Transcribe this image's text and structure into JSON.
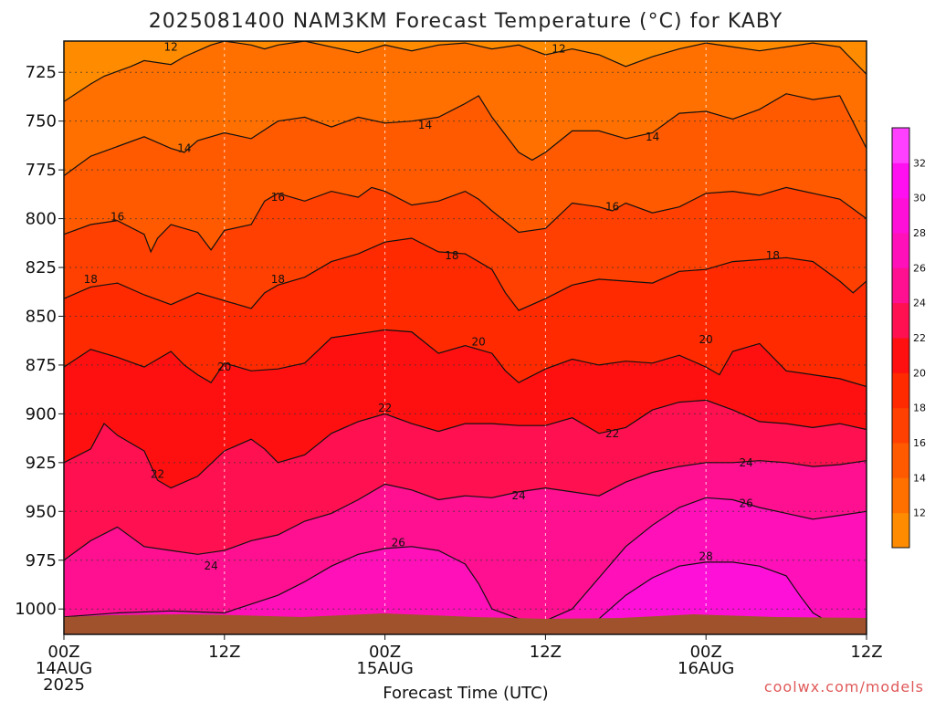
{
  "chart_data": {
    "type": "heatmap",
    "title": "2025081400 NAM3KM Forecast Temperature (°C) for KABY",
    "xlabel": "Forecast Time (UTC)",
    "ylabel": "",
    "credit": "coolwx.com/models",
    "x_ticks": [
      {
        "hour": 0,
        "label": "00Z",
        "sub1": "14AUG",
        "sub2": "2025"
      },
      {
        "hour": 12,
        "label": "12Z",
        "sub1": "",
        "sub2": ""
      },
      {
        "hour": 24,
        "label": "00Z",
        "sub1": "15AUG",
        "sub2": ""
      },
      {
        "hour": 36,
        "label": "12Z",
        "sub1": "",
        "sub2": ""
      },
      {
        "hour": 48,
        "label": "00Z",
        "sub1": "16AUG",
        "sub2": ""
      },
      {
        "hour": 60,
        "label": "12Z",
        "sub1": "",
        "sub2": ""
      }
    ],
    "xlim": [
      0,
      60
    ],
    "y_ticks": [
      725,
      750,
      775,
      800,
      825,
      850,
      875,
      900,
      925,
      950,
      975,
      1000
    ],
    "ylim": [
      1013,
      709
    ],
    "y_scale": "inverted",
    "grid": true,
    "colorbar": {
      "ticks": [
        12,
        14,
        16,
        18,
        20,
        22,
        24,
        26,
        28,
        30,
        32
      ],
      "colors": [
        "#ff8c00",
        "#ff7000",
        "#ff5a00",
        "#ff4000",
        "#ff2a00",
        "#ff1010",
        "#ff1050",
        "#ff1090",
        "#ff10b8",
        "#ff10d8",
        "#ff10f0",
        "#ff40ff"
      ]
    },
    "isotherms": [
      {
        "value": 12,
        "points": [
          [
            0,
            740
          ],
          [
            2,
            731
          ],
          [
            3,
            727
          ],
          [
            5,
            722
          ],
          [
            6,
            719
          ],
          [
            8,
            721
          ],
          [
            9,
            717
          ],
          [
            10,
            714
          ],
          [
            11,
            711
          ],
          [
            12,
            709
          ],
          [
            14,
            711
          ],
          [
            15,
            713
          ],
          [
            16,
            711
          ],
          [
            18,
            709
          ],
          [
            20,
            712
          ],
          [
            22,
            715
          ],
          [
            24,
            711
          ],
          [
            26,
            714
          ],
          [
            28,
            711
          ],
          [
            30,
            710
          ],
          [
            32,
            713
          ],
          [
            34,
            711
          ],
          [
            36,
            716
          ],
          [
            38,
            713
          ],
          [
            40,
            716
          ],
          [
            42,
            722
          ],
          [
            44,
            717
          ],
          [
            46,
            713
          ],
          [
            48,
            710
          ],
          [
            50,
            712
          ],
          [
            52,
            714
          ],
          [
            54,
            712
          ],
          [
            56,
            710
          ],
          [
            58,
            712
          ],
          [
            60,
            726
          ]
        ]
      },
      {
        "value": 14,
        "points": [
          [
            0,
            778
          ],
          [
            2,
            768
          ],
          [
            4,
            763
          ],
          [
            6,
            758
          ],
          [
            8,
            764
          ],
          [
            9,
            766
          ],
          [
            10,
            760
          ],
          [
            12,
            756
          ],
          [
            14,
            759
          ],
          [
            16,
            750
          ],
          [
            18,
            748
          ],
          [
            20,
            753
          ],
          [
            22,
            748
          ],
          [
            24,
            751
          ],
          [
            26,
            750
          ],
          [
            28,
            748
          ],
          [
            30,
            741
          ],
          [
            31,
            737
          ],
          [
            32,
            748
          ],
          [
            34,
            766
          ],
          [
            35,
            770
          ],
          [
            36,
            766
          ],
          [
            38,
            755
          ],
          [
            40,
            755
          ],
          [
            42,
            759
          ],
          [
            44,
            756
          ],
          [
            46,
            746
          ],
          [
            48,
            745
          ],
          [
            50,
            749
          ],
          [
            52,
            744
          ],
          [
            54,
            736
          ],
          [
            56,
            739
          ],
          [
            58,
            737
          ],
          [
            60,
            764
          ]
        ]
      },
      {
        "value": 16,
        "points": [
          [
            0,
            808
          ],
          [
            2,
            803
          ],
          [
            4,
            801
          ],
          [
            6,
            808
          ],
          [
            6.5,
            817
          ],
          [
            7,
            810
          ],
          [
            8,
            803
          ],
          [
            10,
            807
          ],
          [
            11,
            816
          ],
          [
            12,
            806
          ],
          [
            14,
            803
          ],
          [
            15,
            791
          ],
          [
            16,
            787
          ],
          [
            18,
            791
          ],
          [
            20,
            786
          ],
          [
            22,
            789
          ],
          [
            23,
            784
          ],
          [
            24,
            786
          ],
          [
            26,
            793
          ],
          [
            28,
            791
          ],
          [
            30,
            786
          ],
          [
            31,
            790
          ],
          [
            32,
            796
          ],
          [
            34,
            807
          ],
          [
            36,
            805
          ],
          [
            38,
            792
          ],
          [
            40,
            794
          ],
          [
            41,
            796
          ],
          [
            42,
            792
          ],
          [
            44,
            797
          ],
          [
            46,
            794
          ],
          [
            48,
            787
          ],
          [
            50,
            786
          ],
          [
            52,
            788
          ],
          [
            54,
            784
          ],
          [
            56,
            787
          ],
          [
            58,
            790
          ],
          [
            60,
            800
          ]
        ]
      },
      {
        "value": 18,
        "points": [
          [
            0,
            841
          ],
          [
            2,
            835
          ],
          [
            4,
            833
          ],
          [
            6,
            839
          ],
          [
            8,
            844
          ],
          [
            10,
            838
          ],
          [
            12,
            842
          ],
          [
            14,
            846
          ],
          [
            15,
            838
          ],
          [
            16,
            834
          ],
          [
            18,
            830
          ],
          [
            20,
            822
          ],
          [
            22,
            818
          ],
          [
            24,
            812
          ],
          [
            26,
            810
          ],
          [
            28,
            817
          ],
          [
            30,
            818
          ],
          [
            32,
            826
          ],
          [
            33,
            838
          ],
          [
            34,
            847
          ],
          [
            36,
            841
          ],
          [
            38,
            834
          ],
          [
            40,
            831
          ],
          [
            42,
            832
          ],
          [
            44,
            833
          ],
          [
            46,
            827
          ],
          [
            48,
            826
          ],
          [
            50,
            822
          ],
          [
            52,
            821
          ],
          [
            54,
            820
          ],
          [
            56,
            822
          ],
          [
            58,
            832
          ],
          [
            59,
            838
          ],
          [
            60,
            832
          ]
        ]
      },
      {
        "value": 20,
        "points": [
          [
            0,
            876
          ],
          [
            2,
            867
          ],
          [
            4,
            871
          ],
          [
            6,
            876
          ],
          [
            8,
            868
          ],
          [
            9,
            875
          ],
          [
            10,
            880
          ],
          [
            11,
            884
          ],
          [
            12,
            874
          ],
          [
            14,
            878
          ],
          [
            16,
            877
          ],
          [
            18,
            874
          ],
          [
            20,
            861
          ],
          [
            22,
            859
          ],
          [
            24,
            857
          ],
          [
            26,
            858
          ],
          [
            28,
            869
          ],
          [
            30,
            865
          ],
          [
            32,
            869
          ],
          [
            33,
            878
          ],
          [
            34,
            884
          ],
          [
            36,
            877
          ],
          [
            38,
            872
          ],
          [
            40,
            875
          ],
          [
            42,
            873
          ],
          [
            44,
            874
          ],
          [
            46,
            870
          ],
          [
            48,
            876
          ],
          [
            49,
            880
          ],
          [
            50,
            868
          ],
          [
            52,
            864
          ],
          [
            54,
            878
          ],
          [
            56,
            880
          ],
          [
            58,
            882
          ],
          [
            60,
            886
          ]
        ]
      },
      {
        "value": 22,
        "points": [
          [
            0,
            925
          ],
          [
            2,
            918
          ],
          [
            3,
            905
          ],
          [
            4,
            911
          ],
          [
            6,
            919
          ],
          [
            7,
            934
          ],
          [
            8,
            938
          ],
          [
            10,
            932
          ],
          [
            12,
            919
          ],
          [
            14,
            913
          ],
          [
            15,
            918
          ],
          [
            16,
            925
          ],
          [
            18,
            921
          ],
          [
            20,
            910
          ],
          [
            22,
            904
          ],
          [
            24,
            900
          ],
          [
            26,
            905
          ],
          [
            28,
            909
          ],
          [
            30,
            905
          ],
          [
            32,
            905
          ],
          [
            34,
            906
          ],
          [
            36,
            906
          ],
          [
            38,
            902
          ],
          [
            40,
            910
          ],
          [
            42,
            907
          ],
          [
            44,
            898
          ],
          [
            46,
            894
          ],
          [
            48,
            893
          ],
          [
            50,
            898
          ],
          [
            52,
            904
          ],
          [
            54,
            905
          ],
          [
            56,
            907
          ],
          [
            58,
            905
          ],
          [
            60,
            908
          ]
        ]
      },
      {
        "value": 24,
        "points": [
          [
            0,
            975
          ],
          [
            2,
            965
          ],
          [
            4,
            958
          ],
          [
            6,
            968
          ],
          [
            8,
            970
          ],
          [
            10,
            972
          ],
          [
            12,
            970
          ],
          [
            14,
            965
          ],
          [
            16,
            962
          ],
          [
            18,
            955
          ],
          [
            20,
            951
          ],
          [
            22,
            944
          ],
          [
            24,
            936
          ],
          [
            26,
            939
          ],
          [
            28,
            944
          ],
          [
            30,
            942
          ],
          [
            32,
            943
          ],
          [
            34,
            940
          ],
          [
            36,
            938
          ],
          [
            38,
            940
          ],
          [
            40,
            942
          ],
          [
            42,
            935
          ],
          [
            44,
            930
          ],
          [
            46,
            927
          ],
          [
            48,
            925
          ],
          [
            50,
            925
          ],
          [
            52,
            924
          ],
          [
            54,
            925
          ],
          [
            56,
            927
          ],
          [
            58,
            926
          ],
          [
            60,
            924
          ]
        ]
      },
      {
        "value": 26,
        "points": [
          [
            0,
            1004
          ],
          [
            4,
            1002
          ],
          [
            8,
            1001
          ],
          [
            12,
            1002
          ],
          [
            16,
            993
          ],
          [
            18,
            986
          ],
          [
            20,
            978
          ],
          [
            22,
            972
          ],
          [
            24,
            969
          ],
          [
            26,
            968
          ],
          [
            28,
            970
          ],
          [
            30,
            977
          ],
          [
            31,
            987
          ],
          [
            32,
            1000
          ],
          [
            34,
            1005
          ],
          [
            36,
            1006
          ],
          [
            38,
            1000
          ],
          [
            40,
            984
          ],
          [
            42,
            968
          ],
          [
            44,
            957
          ],
          [
            46,
            948
          ],
          [
            48,
            943
          ],
          [
            50,
            944
          ],
          [
            52,
            948
          ],
          [
            54,
            951
          ],
          [
            56,
            954
          ],
          [
            58,
            952
          ],
          [
            60,
            950
          ]
        ]
      },
      {
        "value": 28,
        "points": [
          [
            40,
            1005
          ],
          [
            42,
            993
          ],
          [
            44,
            984
          ],
          [
            46,
            978
          ],
          [
            48,
            976
          ],
          [
            50,
            976
          ],
          [
            52,
            978
          ],
          [
            54,
            983
          ],
          [
            55,
            993
          ],
          [
            56,
            1002
          ],
          [
            57,
            1006
          ]
        ]
      }
    ],
    "contour_labels": [
      {
        "value": 12,
        "x": 8,
        "y": 712
      },
      {
        "value": 12,
        "x": 37,
        "y": 713
      },
      {
        "value": 14,
        "x": 9,
        "y": 764
      },
      {
        "value": 14,
        "x": 27,
        "y": 752
      },
      {
        "value": 14,
        "x": 44,
        "y": 758
      },
      {
        "value": 16,
        "x": 4,
        "y": 799
      },
      {
        "value": 16,
        "x": 16,
        "y": 789
      },
      {
        "value": 16,
        "x": 41,
        "y": 794
      },
      {
        "value": 18,
        "x": 2,
        "y": 831
      },
      {
        "value": 18,
        "x": 16,
        "y": 831
      },
      {
        "value": 18,
        "x": 29,
        "y": 819
      },
      {
        "value": 18,
        "x": 53,
        "y": 819
      },
      {
        "value": 20,
        "x": 12,
        "y": 876
      },
      {
        "value": 20,
        "x": 31,
        "y": 863
      },
      {
        "value": 20,
        "x": 48,
        "y": 862
      },
      {
        "value": 22,
        "x": 7,
        "y": 931
      },
      {
        "value": 22,
        "x": 24,
        "y": 897
      },
      {
        "value": 22,
        "x": 41,
        "y": 910
      },
      {
        "value": 24,
        "x": 11,
        "y": 978
      },
      {
        "value": 24,
        "x": 34,
        "y": 942
      },
      {
        "value": 24,
        "x": 51,
        "y": 925
      },
      {
        "value": 26,
        "x": 25,
        "y": 966
      },
      {
        "value": 26,
        "x": 51,
        "y": 946
      },
      {
        "value": 28,
        "x": 48,
        "y": 973
      }
    ]
  }
}
